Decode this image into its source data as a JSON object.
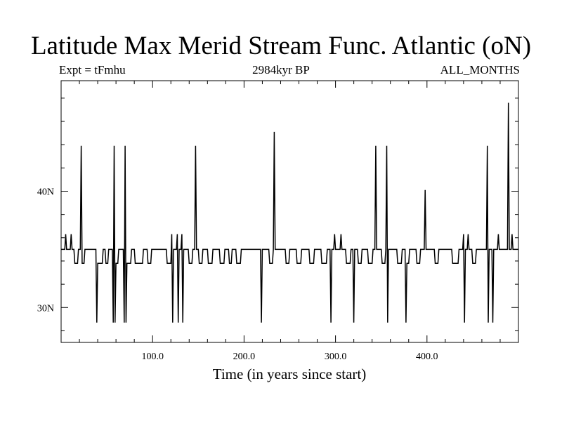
{
  "chart_data": {
    "type": "line",
    "title": "Latitude Max Merid Stream Func. Atlantic (oN)",
    "subtitle_left": "Expt = tFmhu",
    "subtitle_center": "2984kyr BP",
    "subtitle_right": "ALL_MONTHS",
    "xlabel": "Time (in years since start)",
    "ylabel": "",
    "xlim": [
      0,
      500
    ],
    "ylim": [
      27,
      49.5
    ],
    "x_ticks": [
      100,
      200,
      300,
      400
    ],
    "x_tick_labels": [
      "100.0",
      "200.0",
      "300.0",
      "400.0"
    ],
    "y_ticks": [
      30,
      40
    ],
    "y_tick_labels": [
      "30N",
      "40N"
    ],
    "baseline": 35,
    "series": [
      {
        "color": "#000000",
        "points": [
          [
            0,
            35
          ],
          [
            4,
            35
          ],
          [
            5,
            36.3
          ],
          [
            6,
            35
          ],
          [
            10,
            35
          ],
          [
            11,
            36.3
          ],
          [
            12,
            35
          ],
          [
            14,
            35
          ],
          [
            15,
            33.8
          ],
          [
            18,
            33.8
          ],
          [
            19,
            35
          ],
          [
            21,
            35
          ],
          [
            22,
            43.9
          ],
          [
            23,
            33.8
          ],
          [
            25,
            33.8
          ],
          [
            26,
            35
          ],
          [
            38,
            35
          ],
          [
            39,
            28.7
          ],
          [
            40,
            33.8
          ],
          [
            45,
            33.8
          ],
          [
            46,
            35
          ],
          [
            48,
            35
          ],
          [
            49,
            33.8
          ],
          [
            51,
            33.8
          ],
          [
            52,
            35
          ],
          [
            56,
            35
          ],
          [
            57,
            28.7
          ],
          [
            58,
            43.9
          ],
          [
            59,
            28.7
          ],
          [
            60,
            33.8
          ],
          [
            62,
            33.8
          ],
          [
            63,
            35
          ],
          [
            68,
            35
          ],
          [
            69,
            28.7
          ],
          [
            70,
            43.9
          ],
          [
            71,
            28.7
          ],
          [
            72,
            33.8
          ],
          [
            76,
            33.8
          ],
          [
            77,
            35
          ],
          [
            80,
            35
          ],
          [
            81,
            33.8
          ],
          [
            89,
            33.8
          ],
          [
            90,
            35
          ],
          [
            94,
            35
          ],
          [
            95,
            33.8
          ],
          [
            98,
            33.8
          ],
          [
            99,
            35
          ],
          [
            115,
            35
          ],
          [
            116,
            33.8
          ],
          [
            120,
            33.8
          ],
          [
            121,
            36.3
          ],
          [
            122,
            28.7
          ],
          [
            123,
            35
          ],
          [
            126,
            35
          ],
          [
            127,
            36.3
          ],
          [
            128,
            28.7
          ],
          [
            129,
            35
          ],
          [
            131,
            35
          ],
          [
            132,
            36.3
          ],
          [
            133,
            28.7
          ],
          [
            134,
            35
          ],
          [
            139,
            35
          ],
          [
            140,
            33.8
          ],
          [
            143,
            33.8
          ],
          [
            144,
            35
          ],
          [
            146,
            35
          ],
          [
            147,
            43.9
          ],
          [
            148,
            35
          ],
          [
            150,
            35
          ],
          [
            151,
            33.8
          ],
          [
            154,
            33.8
          ],
          [
            155,
            35
          ],
          [
            160,
            35
          ],
          [
            161,
            33.8
          ],
          [
            165,
            33.8
          ],
          [
            166,
            35
          ],
          [
            173,
            35
          ],
          [
            174,
            33.8
          ],
          [
            178,
            33.8
          ],
          [
            179,
            35
          ],
          [
            183,
            35
          ],
          [
            184,
            33.8
          ],
          [
            186,
            33.8
          ],
          [
            187,
            35
          ],
          [
            191,
            35
          ],
          [
            192,
            33.8
          ],
          [
            196,
            33.8
          ],
          [
            197,
            35
          ],
          [
            218,
            35
          ],
          [
            219,
            28.7
          ],
          [
            220,
            35
          ],
          [
            227,
            35
          ],
          [
            228,
            33.8
          ],
          [
            231,
            33.8
          ],
          [
            232,
            35
          ],
          [
            233,
            45.1
          ],
          [
            234,
            35
          ],
          [
            245,
            35
          ],
          [
            246,
            33.8
          ],
          [
            249,
            33.8
          ],
          [
            250,
            35
          ],
          [
            257,
            35
          ],
          [
            258,
            33.8
          ],
          [
            262,
            33.8
          ],
          [
            263,
            35
          ],
          [
            271,
            35
          ],
          [
            272,
            33.8
          ],
          [
            276,
            33.8
          ],
          [
            277,
            35
          ],
          [
            284,
            35
          ],
          [
            285,
            33.8
          ],
          [
            290,
            33.8
          ],
          [
            291,
            35
          ],
          [
            294,
            35
          ],
          [
            295,
            28.7
          ],
          [
            296,
            35
          ],
          [
            298,
            35
          ],
          [
            299,
            36.3
          ],
          [
            300,
            35
          ],
          [
            305,
            35
          ],
          [
            306,
            36.3
          ],
          [
            307,
            35
          ],
          [
            311,
            35
          ],
          [
            312,
            33.8
          ],
          [
            316,
            33.8
          ],
          [
            317,
            35
          ],
          [
            319,
            35
          ],
          [
            320,
            28.7
          ],
          [
            321,
            35
          ],
          [
            324,
            35
          ],
          [
            325,
            33.8
          ],
          [
            328,
            33.8
          ],
          [
            329,
            35
          ],
          [
            335,
            35
          ],
          [
            336,
            33.8
          ],
          [
            340,
            33.8
          ],
          [
            341,
            35
          ],
          [
            343,
            35
          ],
          [
            344,
            43.9
          ],
          [
            345,
            35
          ],
          [
            350,
            35
          ],
          [
            351,
            33.8
          ],
          [
            354,
            33.8
          ],
          [
            355,
            35
          ],
          [
            356,
            43.9
          ],
          [
            357,
            28.7
          ],
          [
            358,
            35
          ],
          [
            367,
            35
          ],
          [
            368,
            33.8
          ],
          [
            372,
            33.8
          ],
          [
            373,
            35
          ],
          [
            376,
            35
          ],
          [
            377,
            28.7
          ],
          [
            378,
            33.8
          ],
          [
            380,
            33.8
          ],
          [
            381,
            35
          ],
          [
            388,
            35
          ],
          [
            389,
            33.8
          ],
          [
            392,
            33.8
          ],
          [
            393,
            35
          ],
          [
            397,
            35
          ],
          [
            398,
            40.1
          ],
          [
            399,
            35
          ],
          [
            408,
            35
          ],
          [
            409,
            33.8
          ],
          [
            412,
            33.8
          ],
          [
            413,
            35
          ],
          [
            427,
            35
          ],
          [
            428,
            33.8
          ],
          [
            434,
            33.8
          ],
          [
            435,
            35
          ],
          [
            439,
            35
          ],
          [
            440,
            36.3
          ],
          [
            441,
            28.7
          ],
          [
            442,
            35
          ],
          [
            444,
            35
          ],
          [
            445,
            36.3
          ],
          [
            446,
            35
          ],
          [
            449,
            35
          ],
          [
            450,
            33.8
          ],
          [
            453,
            33.8
          ],
          [
            454,
            35
          ],
          [
            465,
            35
          ],
          [
            466,
            43.9
          ],
          [
            467,
            28.7
          ],
          [
            468,
            35
          ],
          [
            471,
            35
          ],
          [
            472,
            28.7
          ],
          [
            473,
            35
          ],
          [
            477,
            35
          ],
          [
            478,
            36.3
          ],
          [
            479,
            35
          ],
          [
            488,
            35
          ],
          [
            489,
            47.6
          ],
          [
            490,
            35
          ],
          [
            492,
            35
          ],
          [
            493,
            36.3
          ],
          [
            494,
            35
          ],
          [
            500,
            35
          ]
        ]
      }
    ]
  }
}
